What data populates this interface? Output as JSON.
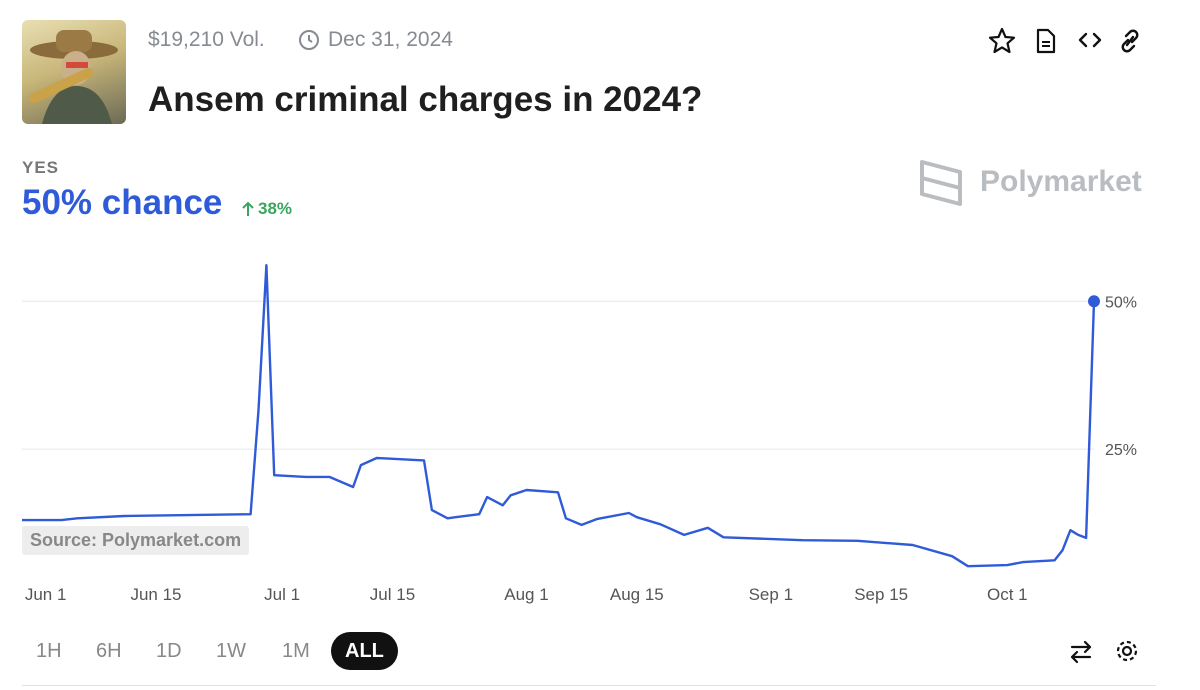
{
  "header": {
    "volume": "$19,210 Vol.",
    "end_date": "Dec 31, 2024",
    "title": "Ansem criminal charges in 2024?"
  },
  "outcome": {
    "label": "YES",
    "chance": "50% chance",
    "change": "38%"
  },
  "brand": "Polymarket",
  "source": "Source: Polymarket.com",
  "ranges": [
    "1H",
    "6H",
    "1D",
    "1W",
    "1M",
    "ALL"
  ],
  "selected_range": "ALL",
  "chart_data": {
    "type": "line",
    "x": [
      "05-29",
      "06-03",
      "06-05",
      "06-11",
      "06-27",
      "06-28",
      "06-29",
      "06-30",
      "07-04",
      "07-07",
      "07-10",
      "07-11",
      "07-13",
      "07-19",
      "07-20",
      "07-22",
      "07-23",
      "07-26",
      "07-27",
      "07-29",
      "07-30",
      "08-01",
      "08-05",
      "08-06",
      "08-08",
      "08-10",
      "08-14",
      "08-15",
      "08-18",
      "08-21",
      "08-24",
      "08-26",
      "09-05",
      "09-12",
      "09-19",
      "09-24",
      "09-26",
      "10-01",
      "10-03",
      "10-07",
      "10-08",
      "10-09",
      "10-10",
      "10-11",
      "10-12"
    ],
    "series": [
      {
        "name": "Yes",
        "color": "#2f5bd8",
        "values": [
          13.0,
          13.0,
          13.3,
          13.7,
          14.0,
          31.6,
          56.1,
          20.6,
          20.3,
          20.3,
          18.6,
          22.3,
          23.5,
          23.1,
          14.7,
          13.3,
          13.5,
          14.0,
          16.9,
          15.5,
          17.2,
          18.1,
          17.7,
          13.3,
          12.2,
          13.2,
          14.2,
          13.5,
          12.3,
          10.5,
          11.7,
          10.1,
          9.6,
          9.5,
          8.8,
          6.9,
          5.2,
          5.4,
          5.9,
          6.2,
          7.9,
          11.3,
          10.5,
          10.0,
          50.0
        ]
      }
    ],
    "xlim": [
      "05-29",
      "10-12"
    ],
    "xticks": [
      {
        "value": "06-01",
        "label": "Jun 1"
      },
      {
        "value": "06-15",
        "label": "Jun 15"
      },
      {
        "value": "07-01",
        "label": "Jul 1"
      },
      {
        "value": "07-15",
        "label": "Jul 15"
      },
      {
        "value": "08-01",
        "label": "Aug 1"
      },
      {
        "value": "08-15",
        "label": "Aug 15"
      },
      {
        "value": "09-01",
        "label": "Sep 1"
      },
      {
        "value": "09-15",
        "label": "Sep 15"
      },
      {
        "value": "10-01",
        "label": "Oct 1"
      }
    ],
    "ylim": [
      0,
      58
    ],
    "yticks": [
      {
        "value": 25,
        "label": "25%"
      },
      {
        "value": 50,
        "label": "50%"
      }
    ],
    "grid": true
  }
}
